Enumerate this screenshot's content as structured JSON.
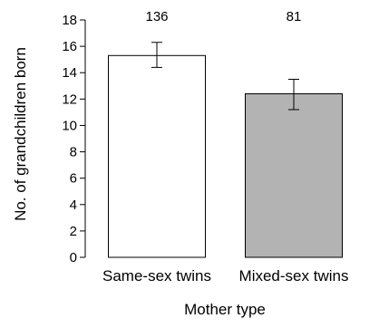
{
  "chart_data": {
    "type": "bar",
    "title": "",
    "xlabel": "Mother type",
    "ylabel": "No. of grandchildren born",
    "categories": [
      "Same-sex twins",
      "Mixed-sex twins"
    ],
    "values": [
      15.3,
      12.4
    ],
    "error_low": [
      14.4,
      11.2
    ],
    "error_high": [
      16.3,
      13.5
    ],
    "sample_sizes": [
      "136",
      "81"
    ],
    "bar_colors": [
      "#ffffff",
      "#b3b3b3"
    ],
    "ylim": [
      0,
      18
    ],
    "yticks": [
      "0",
      "2",
      "4",
      "6",
      "8",
      "10",
      "12",
      "14",
      "16",
      "18"
    ],
    "grid": false,
    "legend": "none"
  }
}
